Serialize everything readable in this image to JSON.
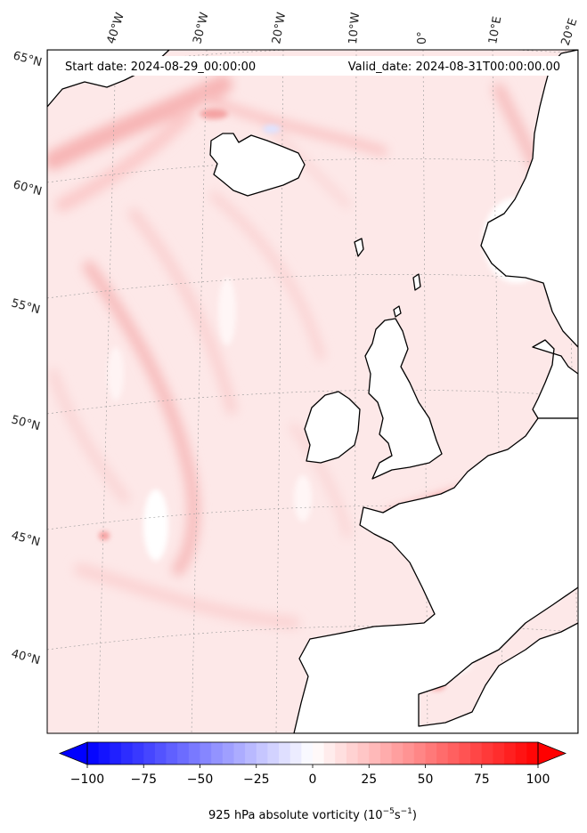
{
  "header": {
    "start_date": "Start date: 2024-08-29_00:00:00",
    "valid_date": "Valid_date: 2024-08-31T00:00:00.00"
  },
  "map": {
    "lon_labels": [
      "40°W",
      "30°W",
      "20°W",
      "10°W",
      "0°",
      "10°E",
      "20°E"
    ],
    "lat_labels": [
      "65°N",
      "60°N",
      "55°N",
      "50°N",
      "45°N",
      "40°N"
    ]
  },
  "colorbar": {
    "ticks": [
      -100,
      -75,
      -50,
      -25,
      0,
      25,
      50,
      75,
      100
    ],
    "tick_labels": [
      "−100",
      "−75",
      "−50",
      "−25",
      "0",
      "25",
      "50",
      "75",
      "100"
    ],
    "min": -100,
    "max": 100,
    "label_text": "925 hPa absolute vorticity (10",
    "label_exp1": "−5",
    "label_mid": "s",
    "label_exp2": "−1",
    "label_end": ")",
    "color_low": "#0000ff",
    "color_mid": "#ffffff",
    "color_high": "#ff0000"
  }
}
